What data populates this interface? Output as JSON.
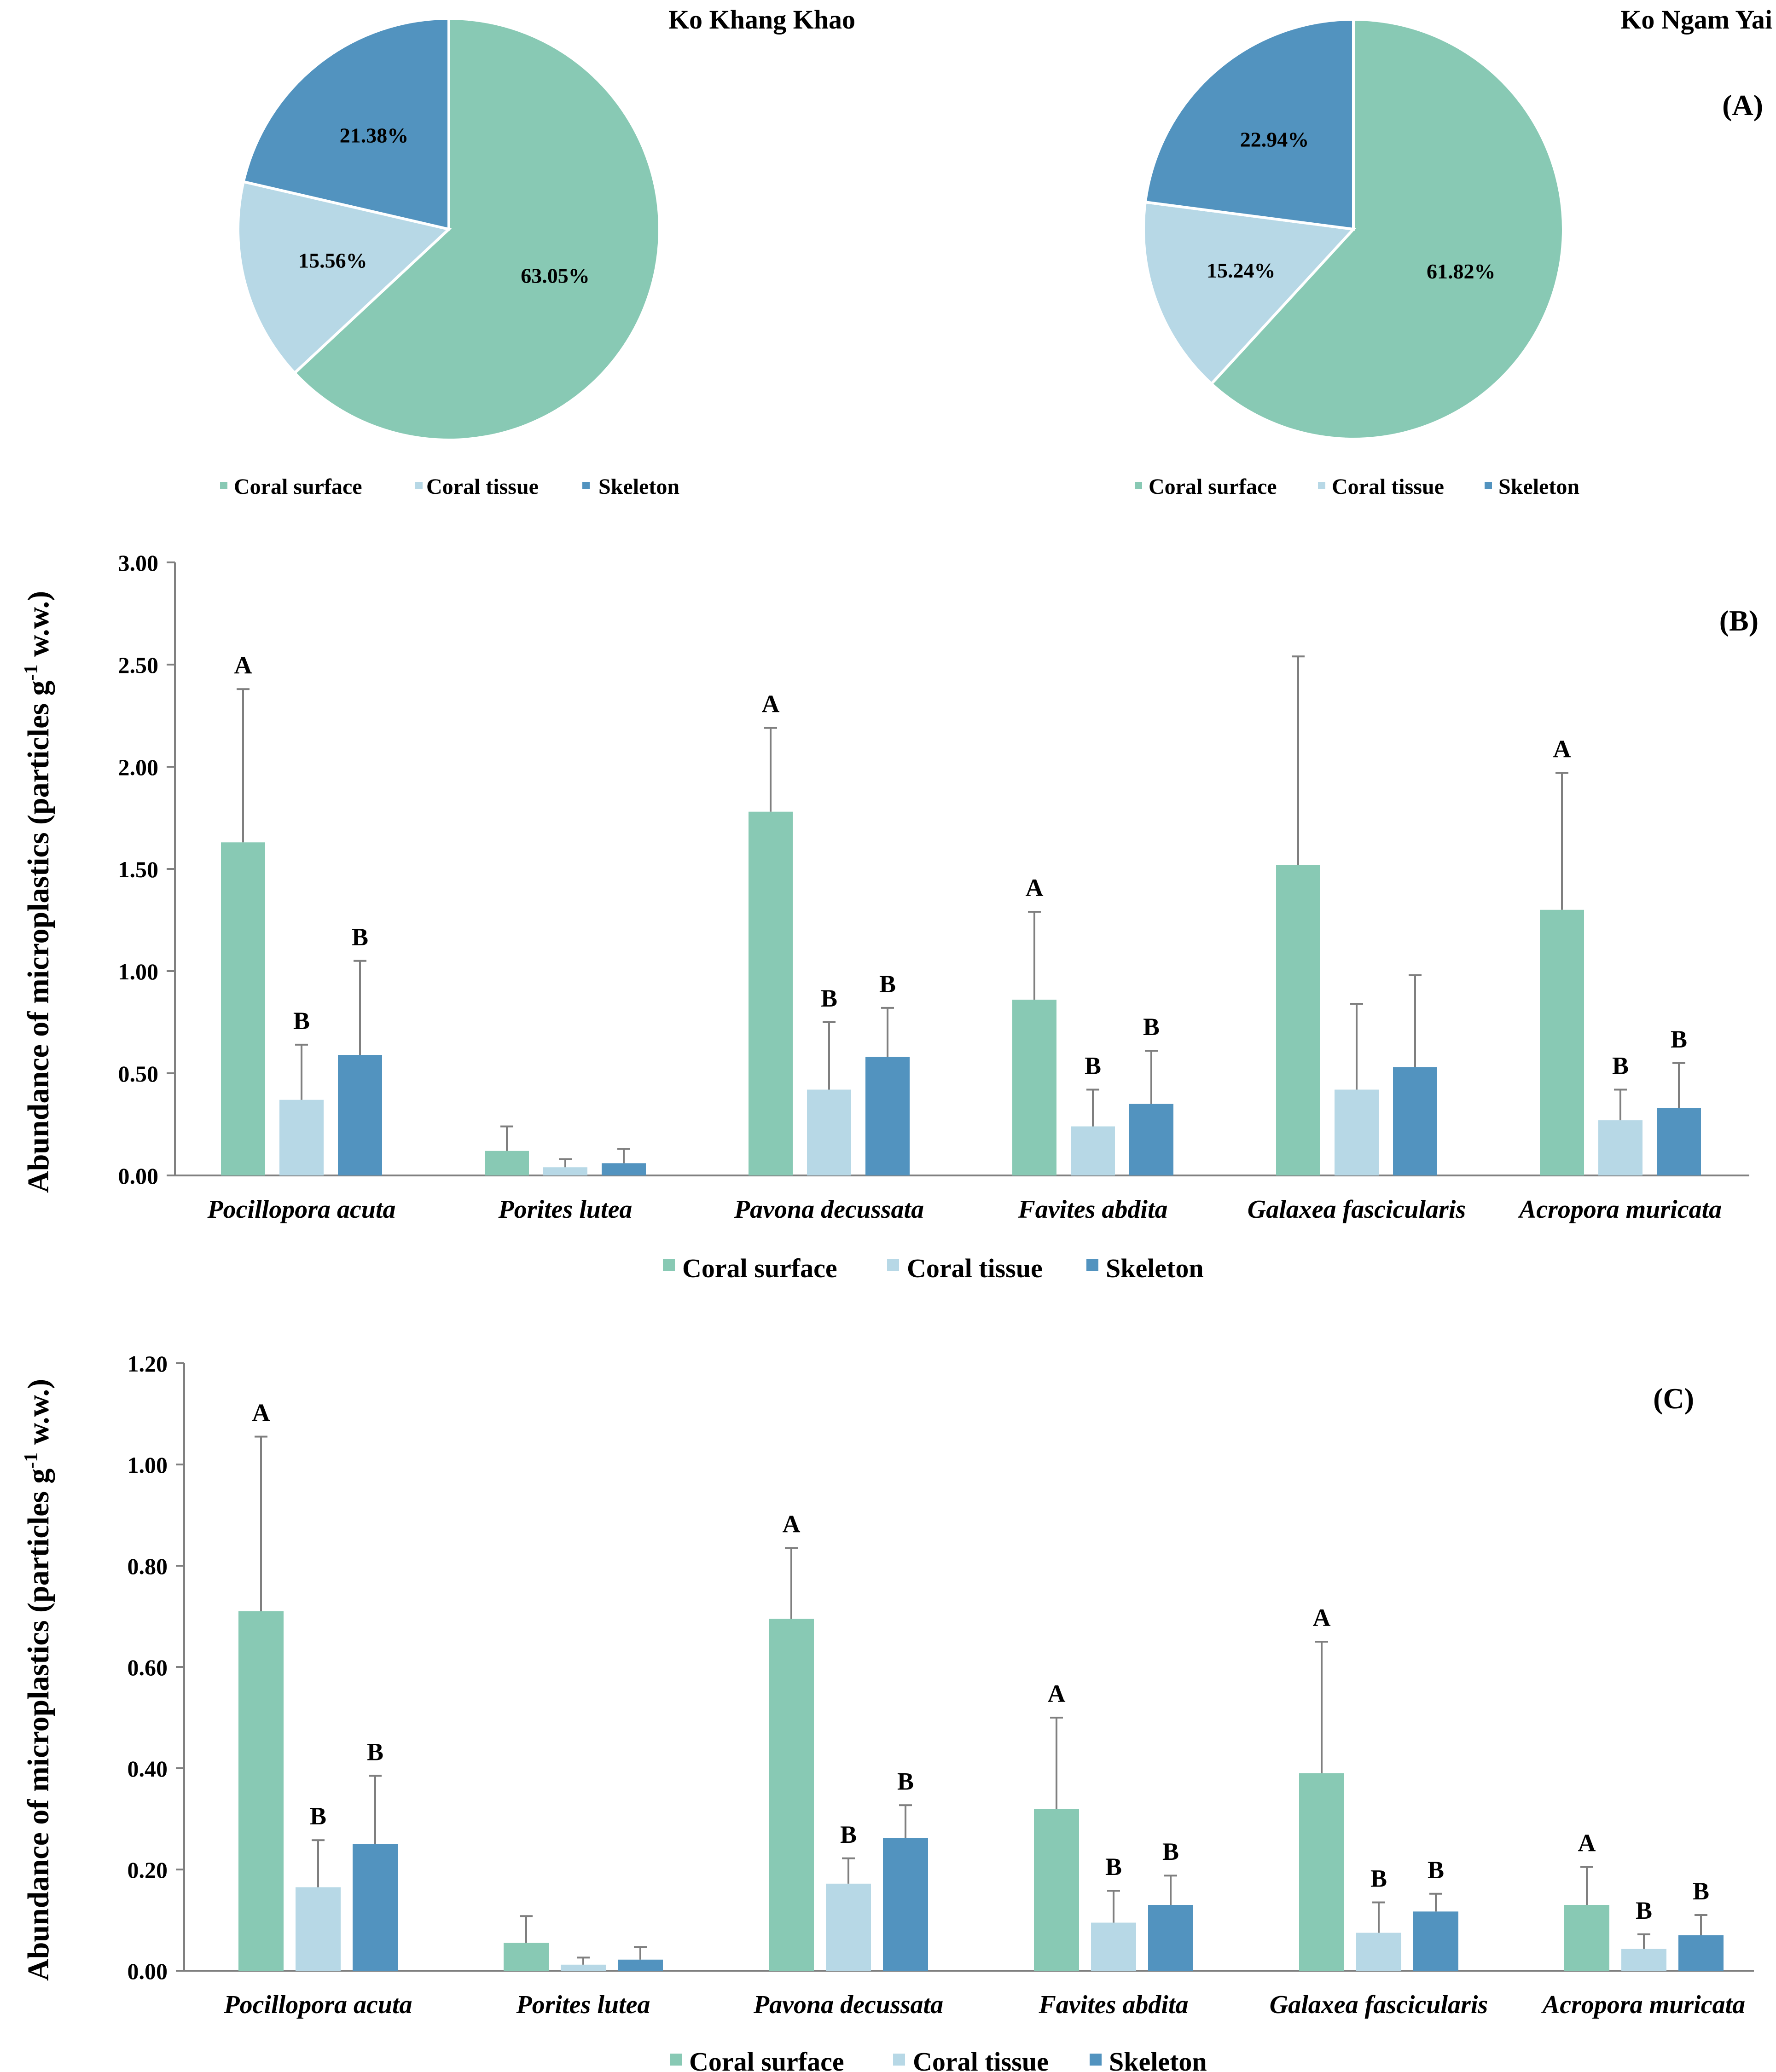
{
  "colors": {
    "surface": "#88c9b4",
    "tissue": "#b7d8e6",
    "skeleton": "#5293bf",
    "axis": "#808080",
    "error": "#7f7f7f"
  },
  "panel_labels": {
    "a": "(A)",
    "b": "(B)",
    "c": "(C)"
  },
  "legend": {
    "surface": "Coral surface",
    "tissue": "Coral tissue",
    "skeleton": "Skeleton"
  },
  "y_axis_label": "Abundance of microplastics (particles g-1 w.w.)",
  "chart_data": [
    {
      "type": "pie",
      "title": "Ko Khang Khao",
      "labels": [
        "Coral surface",
        "Coral tissue",
        "Skeleton"
      ],
      "values": [
        63.05,
        15.56,
        21.38
      ],
      "value_labels": [
        "63.05%",
        "15.56%",
        "21.38%"
      ]
    },
    {
      "type": "pie",
      "title": "Ko Ngam Yai",
      "labels": [
        "Coral surface",
        "Coral tissue",
        "Skeleton"
      ],
      "values": [
        61.82,
        15.24,
        22.94
      ],
      "value_labels": [
        "61.82%",
        "15.24%",
        "22.94%"
      ]
    },
    {
      "type": "bar",
      "panel": "(B)",
      "ylabel": "Abundance of microplastics (particles g-1 w.w.)",
      "ylim": [
        0,
        3.0
      ],
      "yticks": [
        "0.00",
        "0.50",
        "1.00",
        "1.50",
        "2.00",
        "2.50",
        "3.00"
      ],
      "categories": [
        "Pocillopora acuta",
        "Porites lutea",
        "Pavona decussata",
        "Favites abdita",
        "Galaxea fascicularis",
        "Acropora muricata"
      ],
      "series": [
        {
          "name": "Coral surface",
          "values": [
            1.63,
            0.12,
            1.78,
            0.86,
            1.52,
            1.3
          ],
          "errors": [
            0.75,
            0.12,
            0.41,
            0.43,
            1.02,
            0.67
          ],
          "letters": [
            "A",
            "",
            "A",
            "A",
            "",
            "A"
          ]
        },
        {
          "name": "Coral tissue",
          "values": [
            0.37,
            0.04,
            0.42,
            0.24,
            0.42,
            0.27
          ],
          "errors": [
            0.27,
            0.04,
            0.33,
            0.18,
            0.42,
            0.15
          ],
          "letters": [
            "B",
            "",
            "B",
            "B",
            "",
            "B"
          ]
        },
        {
          "name": "Skeleton",
          "values": [
            0.59,
            0.06,
            0.58,
            0.35,
            0.53,
            0.33
          ],
          "errors": [
            0.46,
            0.07,
            0.24,
            0.26,
            0.45,
            0.22
          ],
          "letters": [
            "B",
            "",
            "B",
            "B",
            "",
            "B"
          ]
        }
      ]
    },
    {
      "type": "bar",
      "panel": "(C)",
      "ylabel": "Abundance of microplastics (particles g-1 w.w.)",
      "ylim": [
        0,
        1.2
      ],
      "yticks": [
        "0.00",
        "0.20",
        "0.40",
        "0.60",
        "0.80",
        "1.00",
        "1.20"
      ],
      "categories": [
        "Pocillopora acuta",
        "Porites lutea",
        "Pavona decussata",
        "Favites abdita",
        "Galaxea fascicularis",
        "Acropora muricata"
      ],
      "series": [
        {
          "name": "Coral surface",
          "values": [
            0.71,
            0.055,
            0.695,
            0.32,
            0.39,
            0.13
          ],
          "errors": [
            0.345,
            0.053,
            0.14,
            0.18,
            0.26,
            0.075
          ],
          "letters": [
            "A",
            "",
            "A",
            "A",
            "A",
            "A"
          ]
        },
        {
          "name": "Coral tissue",
          "values": [
            0.165,
            0.012,
            0.172,
            0.095,
            0.075,
            0.043
          ],
          "errors": [
            0.093,
            0.014,
            0.05,
            0.063,
            0.06,
            0.029
          ],
          "letters": [
            "B",
            "",
            "B",
            "B",
            "B",
            "B"
          ]
        },
        {
          "name": "Skeleton",
          "values": [
            0.25,
            0.022,
            0.262,
            0.13,
            0.117,
            0.07
          ],
          "errors": [
            0.135,
            0.025,
            0.065,
            0.058,
            0.035,
            0.04
          ],
          "letters": [
            "B",
            "",
            "B",
            "B",
            "B",
            "B"
          ]
        }
      ]
    }
  ]
}
